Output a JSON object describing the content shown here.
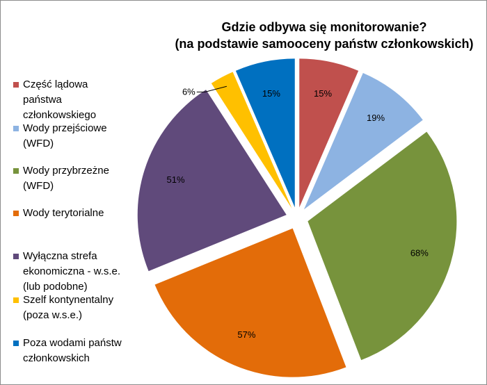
{
  "chart_data": {
    "type": "pie",
    "title": "Gdzie odbywa się monitorowanie?",
    "subtitle": "(na podstawie samooceny państw członkowskich)",
    "categories": [
      "Część lądowa państwa członkowskiego",
      "Wody przejściowe (WFD)",
      "Wody przybrzeżne (WFD)",
      "Wody terytorialne",
      "Wyłączna strefa ekonomiczna - w.s.e. (lub podobne)",
      "Szelf kontynentalny (poza w.s.e.)",
      "Poza wodami państw członkowskich"
    ],
    "values": [
      15,
      19,
      68,
      57,
      51,
      6,
      15
    ],
    "data_labels": [
      "15%",
      "19%",
      "68%",
      "57%",
      "51%",
      "6%",
      "15%"
    ],
    "colors": [
      "#c0504d",
      "#8db3e2",
      "#77933c",
      "#e36c09",
      "#604a7b",
      "#ffc000",
      "#0070c0"
    ],
    "legend_position": "left",
    "exploded": true
  },
  "legend": {
    "items": [
      {
        "line1": "Część lądowa",
        "line2": "państwa",
        "line3": "członkowskiego"
      },
      {
        "line1": "Wody przejściowe",
        "line2": "(WFD)"
      },
      {
        "line1": "Wody przybrzeżne",
        "line2": "(WFD)"
      },
      {
        "line1": "Wody terytorialne"
      },
      {
        "line1": "Wyłączna strefa",
        "line2": "ekonomiczna - w.s.e.",
        "line3": "(lub podobne)"
      },
      {
        "line1": "Szelf kontynentalny",
        "line2": "(poza w.s.e.)"
      },
      {
        "line1": "Poza wodami państw",
        "line2": "członkowskich"
      }
    ]
  }
}
